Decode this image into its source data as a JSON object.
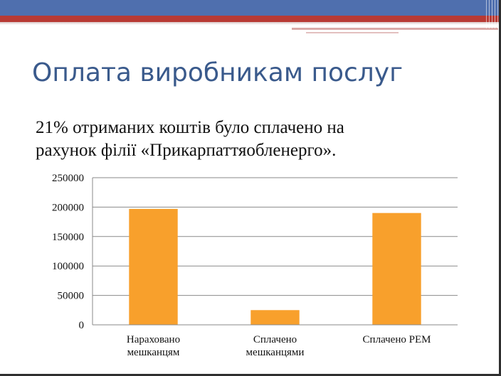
{
  "slide": {
    "title": "Оплата виробникам послуг",
    "subtitle_lines": [
      "21% отриманих коштів було сплачено на",
      "рахунок філії «Прикарпаттяобленерго»."
    ]
  },
  "colors": {
    "bar": "#F8A02C",
    "title": "#3A5A8C",
    "band_blue": "#4F6FAE",
    "band_red": "#B83A34"
  },
  "chart_data": {
    "type": "bar",
    "categories": [
      [
        "Нараховано",
        "мешканцям"
      ],
      [
        "Сплачено",
        "мешканцями"
      ],
      [
        "Сплачено РЕМ"
      ]
    ],
    "values": [
      197000,
      25000,
      190000
    ],
    "yticks": [
      "0",
      "50000",
      "100000",
      "150000",
      "200000",
      "250000"
    ],
    "ylim": [
      0,
      250000
    ],
    "grid": true,
    "legend": "none"
  }
}
